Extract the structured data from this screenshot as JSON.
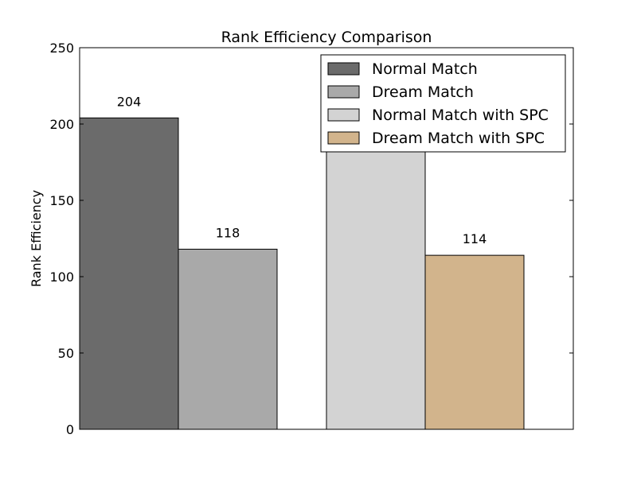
{
  "chart_data": {
    "type": "bar",
    "title": "Rank Efficiency Comparison",
    "xlabel": "",
    "ylabel": "Rank Efficiency",
    "ylim": [
      0,
      250
    ],
    "yticks": [
      0,
      50,
      100,
      150,
      200,
      250
    ],
    "grid": false,
    "legend_position": "top-right",
    "series": [
      {
        "name": "Normal Match",
        "value": 204,
        "color": "#6b6b6b",
        "data_label": "204"
      },
      {
        "name": "Dream Match",
        "value": 118,
        "color": "#a9a9a9",
        "data_label": "118"
      },
      {
        "name": "Normal Match with SPC",
        "value": 210,
        "color": "#d3d3d3",
        "data_label": ""
      },
      {
        "name": "Dream Match with SPC",
        "value": 114,
        "color": "#d2b48c",
        "data_label": "114"
      }
    ]
  }
}
